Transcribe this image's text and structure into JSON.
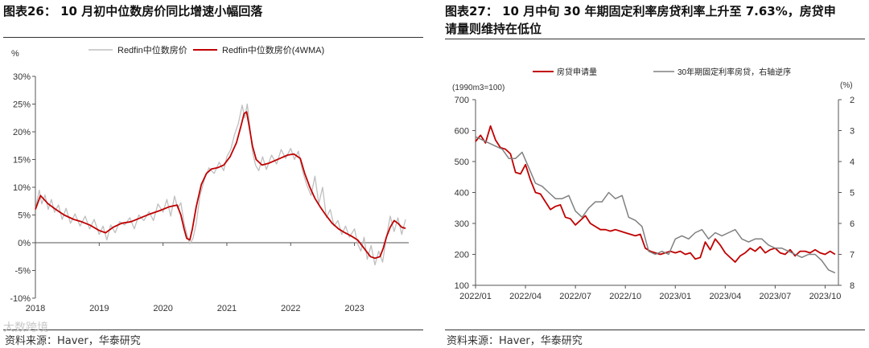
{
  "left": {
    "title": "图表26： 10 月初中位数房价同比增速小幅回落",
    "source": "资料来源：Haver，华泰研究",
    "chart_data": {
      "type": "line",
      "title": "",
      "ylabel": "%",
      "ylim": [
        -10,
        30
      ],
      "yticks": [
        "30%",
        "25%",
        "20%",
        "15%",
        "10%",
        "5%",
        "0%",
        "-5%",
        "-10%"
      ],
      "xlim": [
        2018,
        2023.85
      ],
      "xticks": [
        "2018",
        "2019",
        "2020",
        "2021",
        "2022",
        "2023"
      ],
      "legend": [
        "Redfin中位数房价",
        "Redfin中位数房价(4WMA)"
      ],
      "series": [
        {
          "name": "Redfin中位数房价",
          "color": "#bfbfbf",
          "x": [
            2018.0,
            2018.06,
            2018.1,
            2018.15,
            2018.2,
            2018.25,
            2018.3,
            2018.36,
            2018.42,
            2018.48,
            2018.55,
            2018.62,
            2018.7,
            2018.78,
            2018.85,
            2018.92,
            2019.0,
            2019.06,
            2019.12,
            2019.18,
            2019.25,
            2019.32,
            2019.4,
            2019.48,
            2019.55,
            2019.62,
            2019.7,
            2019.78,
            2019.85,
            2019.92,
            2020.0,
            2020.06,
            2020.12,
            2020.18,
            2020.23,
            2020.28,
            2020.33,
            2020.38,
            2020.42,
            2020.47,
            2020.52,
            2020.58,
            2020.65,
            2020.72,
            2020.8,
            2020.88,
            2020.95,
            2021.0,
            2021.06,
            2021.12,
            2021.18,
            2021.24,
            2021.28,
            2021.32,
            2021.36,
            2021.4,
            2021.45,
            2021.5,
            2021.56,
            2021.62,
            2021.7,
            2021.78,
            2021.85,
            2021.92,
            2022.0,
            2022.06,
            2022.12,
            2022.18,
            2022.25,
            2022.32,
            2022.38,
            2022.44,
            2022.5,
            2022.56,
            2022.62,
            2022.68,
            2022.74,
            2022.8,
            2022.86,
            2022.92,
            2023.0,
            2023.05,
            2023.1,
            2023.15,
            2023.2,
            2023.26,
            2023.32,
            2023.38,
            2023.44,
            2023.5,
            2023.56,
            2023.62,
            2023.68,
            2023.74,
            2023.8
          ],
          "y": [
            6.0,
            9.5,
            7.0,
            8.6,
            6.0,
            7.8,
            5.5,
            6.8,
            4.2,
            6.2,
            3.5,
            5.2,
            3.0,
            4.8,
            2.5,
            4.2,
            1.5,
            3.0,
            0.5,
            3.2,
            1.8,
            3.8,
            3.2,
            4.5,
            2.5,
            5.0,
            4.0,
            5.6,
            4.0,
            7.0,
            5.5,
            7.8,
            4.8,
            8.4,
            6.2,
            7.2,
            3.5,
            1.2,
            -0.2,
            0.8,
            3.5,
            8.5,
            11.5,
            13.5,
            12.5,
            14.5,
            13.0,
            15.5,
            16.8,
            19.5,
            21.5,
            24.8,
            22.5,
            25.0,
            21.0,
            16.5,
            14.0,
            13.0,
            15.5,
            13.2,
            15.8,
            14.2,
            16.8,
            15.2,
            17.0,
            15.0,
            16.5,
            13.2,
            10.5,
            8.5,
            12.0,
            7.0,
            10.0,
            4.5,
            6.0,
            3.0,
            4.0,
            1.5,
            3.0,
            1.0,
            2.5,
            -0.2,
            -1.5,
            1.0,
            -3.0,
            -0.5,
            -4.0,
            -1.5,
            -3.5,
            1.0,
            4.8,
            2.0,
            4.5,
            1.5,
            4.2
          ]
        },
        {
          "name": "Redfin中位数房价(4WMA)",
          "color": "#c00000",
          "x": [
            2018.0,
            2018.08,
            2018.2,
            2018.32,
            2018.45,
            2018.6,
            2018.72,
            2018.85,
            2019.0,
            2019.1,
            2019.22,
            2019.35,
            2019.5,
            2019.65,
            2019.8,
            2019.95,
            2020.1,
            2020.22,
            2020.28,
            2020.33,
            2020.37,
            2020.42,
            2020.46,
            2020.52,
            2020.6,
            2020.68,
            2020.76,
            2020.85,
            2020.95,
            2021.05,
            2021.15,
            2021.22,
            2021.27,
            2021.31,
            2021.35,
            2021.4,
            2021.46,
            2021.55,
            2021.65,
            2021.75,
            2021.85,
            2021.95,
            2022.05,
            2022.15,
            2022.22,
            2022.3,
            2022.38,
            2022.46,
            2022.55,
            2022.65,
            2022.75,
            2022.85,
            2022.95,
            2023.05,
            2023.15,
            2023.25,
            2023.32,
            2023.4,
            2023.45,
            2023.5,
            2023.56,
            2023.62,
            2023.68,
            2023.74,
            2023.8
          ],
          "y": [
            6.0,
            8.5,
            7.0,
            6.0,
            5.0,
            4.2,
            3.8,
            3.2,
            2.2,
            1.8,
            2.8,
            3.5,
            3.8,
            4.5,
            5.2,
            5.8,
            6.5,
            6.8,
            5.0,
            2.5,
            0.8,
            0.5,
            2.5,
            6.5,
            10.5,
            12.5,
            13.3,
            13.5,
            14.0,
            15.5,
            18.0,
            21.0,
            23.3,
            23.6,
            21.0,
            17.5,
            15.0,
            14.0,
            14.3,
            14.8,
            15.3,
            15.8,
            16.0,
            15.2,
            12.5,
            10.0,
            8.0,
            6.5,
            5.0,
            3.5,
            2.5,
            1.8,
            1.2,
            0.5,
            -1.0,
            -2.5,
            -2.8,
            -2.5,
            -1.0,
            1.0,
            2.8,
            4.0,
            3.5,
            2.8,
            2.6
          ]
        }
      ]
    }
  },
  "right": {
    "title_line1": "图表27： 10 月中旬 30 年期固定利率房贷利率上升至 7.63%，房贷申",
    "title_line2": "请量则维持在低位",
    "source": "资料来源：Haver，华泰研究",
    "chart_data": {
      "type": "line",
      "title": "",
      "ylabel_left": "(1990m3=100)",
      "ylabel_right": "(%)",
      "ylim_left": [
        100,
        700
      ],
      "yticks_left": [
        "700",
        "600",
        "500",
        "400",
        "300",
        "200",
        "100"
      ],
      "ylim_right": [
        8,
        2
      ],
      "yticks_right": [
        "2",
        "3",
        "4",
        "5",
        "6",
        "7",
        "8"
      ],
      "xlim": [
        0,
        21.8
      ],
      "xticks": [
        "2022/01",
        "2022/04",
        "2022/07",
        "2022/10",
        "2023/01",
        "2023/04",
        "2023/07",
        "2023/10"
      ],
      "legend": [
        "房贷申请量",
        "30年期固定利率房贷，右轴逆序"
      ],
      "series": [
        {
          "name": "房贷申请量",
          "color": "#c00000",
          "axis": "left",
          "x": [
            0.0,
            0.3,
            0.6,
            0.9,
            1.2,
            1.5,
            1.8,
            2.1,
            2.4,
            2.7,
            3.0,
            3.3,
            3.6,
            3.9,
            4.2,
            4.5,
            4.8,
            5.1,
            5.4,
            5.7,
            6.0,
            6.3,
            6.6,
            6.9,
            7.2,
            7.5,
            7.8,
            8.1,
            8.4,
            8.7,
            9.0,
            9.3,
            9.6,
            9.9,
            10.2,
            10.5,
            10.8,
            11.1,
            11.4,
            11.7,
            12.0,
            12.3,
            12.6,
            12.9,
            13.2,
            13.5,
            13.8,
            14.1,
            14.4,
            14.7,
            15.0,
            15.3,
            15.6,
            15.9,
            16.2,
            16.5,
            16.8,
            17.1,
            17.4,
            17.7,
            18.0,
            18.3,
            18.6,
            18.9,
            19.2,
            19.5,
            19.8,
            20.1,
            20.4,
            20.7,
            21.0,
            21.3,
            21.6
          ],
          "y": [
            565,
            585,
            560,
            615,
            570,
            545,
            540,
            525,
            465,
            460,
            490,
            440,
            400,
            395,
            370,
            345,
            355,
            360,
            320,
            315,
            295,
            310,
            325,
            300,
            290,
            280,
            280,
            275,
            280,
            275,
            270,
            265,
            260,
            265,
            220,
            210,
            205,
            200,
            205,
            210,
            205,
            210,
            200,
            205,
            185,
            190,
            240,
            215,
            250,
            230,
            205,
            190,
            175,
            195,
            205,
            220,
            210,
            225,
            205,
            215,
            220,
            205,
            200,
            215,
            195,
            210,
            210,
            205,
            215,
            205,
            200,
            210,
            200
          ]
        },
        {
          "name": "30年期固定利率房贷，右轴逆序",
          "color": "#808080",
          "axis": "right",
          "x": [
            0.0,
            0.4,
            0.8,
            1.2,
            1.6,
            2.0,
            2.4,
            2.8,
            3.2,
            3.6,
            4.0,
            4.4,
            4.8,
            5.2,
            5.6,
            6.0,
            6.4,
            6.8,
            7.2,
            7.6,
            8.0,
            8.4,
            8.8,
            9.2,
            9.6,
            10.0,
            10.4,
            10.8,
            11.2,
            11.6,
            12.0,
            12.4,
            12.8,
            13.2,
            13.6,
            14.0,
            14.4,
            14.8,
            15.2,
            15.6,
            16.0,
            16.4,
            16.8,
            17.2,
            17.6,
            18.0,
            18.4,
            18.8,
            19.2,
            19.6,
            20.0,
            20.4,
            20.8,
            21.2,
            21.6
          ],
          "y": [
            3.2,
            3.3,
            3.4,
            3.5,
            3.6,
            3.9,
            3.9,
            3.7,
            4.2,
            4.7,
            4.8,
            5.0,
            5.2,
            5.2,
            5.1,
            5.6,
            5.8,
            5.5,
            5.3,
            5.3,
            5.0,
            5.2,
            5.1,
            5.8,
            5.9,
            6.1,
            6.9,
            7.0,
            6.9,
            7.0,
            6.5,
            6.4,
            6.5,
            6.3,
            6.2,
            6.5,
            6.3,
            6.4,
            6.3,
            6.2,
            6.5,
            6.6,
            6.5,
            6.5,
            6.7,
            6.8,
            6.8,
            6.9,
            7.0,
            7.1,
            7.0,
            7.0,
            7.2,
            7.5,
            7.6
          ]
        }
      ]
    }
  },
  "watermark": "大数跨境"
}
